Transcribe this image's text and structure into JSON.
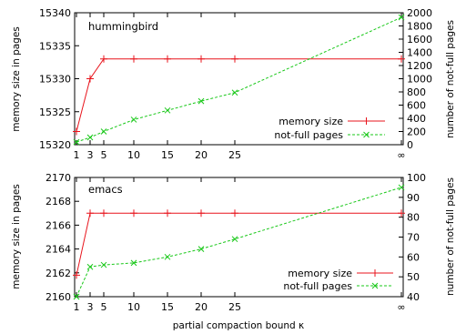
{
  "chart_data": [
    {
      "type": "line",
      "title": "hummingbird",
      "ylabel_left": "memory size in pages",
      "ylabel_right": "number of not-full pages",
      "x_tick_labels": [
        "1",
        "3",
        "5",
        "10",
        "15",
        "20",
        "25",
        "∞"
      ],
      "y_left_ticks": [
        "15320",
        "15325",
        "15330",
        "15335",
        "15340"
      ],
      "y_right_ticks": [
        "0",
        "200",
        "400",
        "600",
        "800",
        "1000",
        "1200",
        "1400",
        "1600",
        "1800",
        "2000"
      ],
      "ylim_left": [
        15320,
        15340
      ],
      "ylim_right": [
        0,
        2000
      ],
      "legend_position": "bottom-right",
      "series": [
        {
          "name": "memory size",
          "axis": "left",
          "color": "#e8141c",
          "marker": "+",
          "line_style": "solid",
          "x": [
            "1",
            "3",
            "5",
            "10",
            "15",
            "20",
            "25",
            "∞"
          ],
          "values": [
            15322,
            15330,
            15333,
            15333,
            15333,
            15333,
            15333,
            15333
          ]
        },
        {
          "name": "not-full pages",
          "axis": "right",
          "color": "#19c819",
          "marker": "x",
          "line_style": "dashed",
          "x": [
            "1",
            "3",
            "5",
            "10",
            "15",
            "20",
            "25",
            "∞"
          ],
          "values": [
            40,
            110,
            200,
            380,
            520,
            660,
            790,
            1930
          ]
        }
      ]
    },
    {
      "type": "line",
      "title": "emacs",
      "xlabel": "partial compaction bound κ",
      "ylabel_left": "memory size in pages",
      "ylabel_right": "number of not-full pages",
      "x_tick_labels": [
        "1",
        "3",
        "5",
        "10",
        "15",
        "20",
        "25",
        "∞"
      ],
      "y_left_ticks": [
        "2160",
        "2162",
        "2164",
        "2166",
        "2168",
        "2170"
      ],
      "y_right_ticks": [
        "40",
        "50",
        "60",
        "70",
        "80",
        "90",
        "100"
      ],
      "ylim_left": [
        2160,
        2170
      ],
      "ylim_right": [
        40,
        100
      ],
      "legend_position": "bottom-right",
      "series": [
        {
          "name": "memory size",
          "axis": "left",
          "color": "#e8141c",
          "marker": "+",
          "line_style": "solid",
          "x": [
            "1",
            "3",
            "5",
            "10",
            "15",
            "20",
            "25",
            "∞"
          ],
          "values": [
            2161.8,
            2167,
            2167,
            2167,
            2167,
            2167,
            2167,
            2167
          ]
        },
        {
          "name": "not-full pages",
          "axis": "right",
          "color": "#19c819",
          "marker": "x",
          "line_style": "dashed",
          "x": [
            "1",
            "3",
            "5",
            "10",
            "15",
            "20",
            "25",
            "∞"
          ],
          "values": [
            40,
            55,
            56,
            57,
            60,
            64,
            69,
            95
          ]
        }
      ]
    }
  ]
}
